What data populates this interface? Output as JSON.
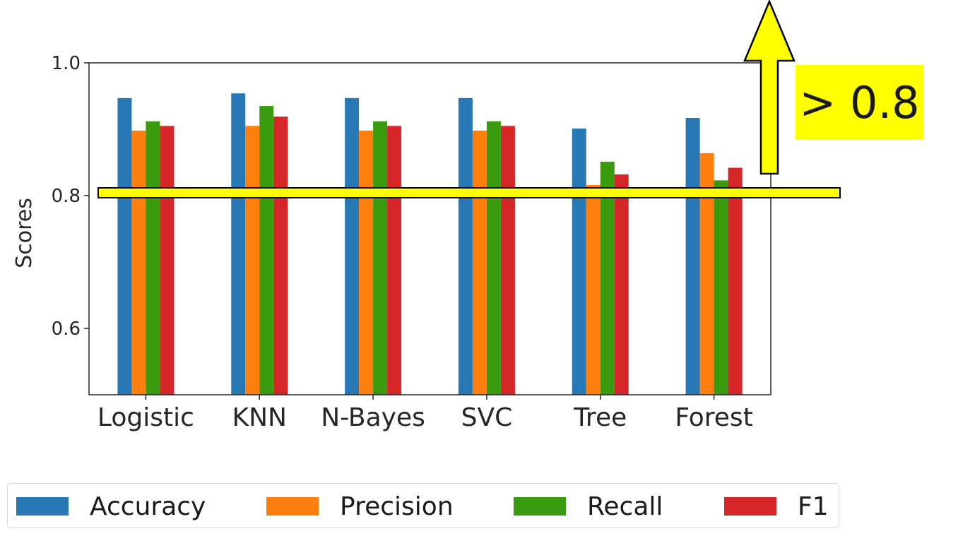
{
  "chart_data": {
    "type": "bar",
    "categories": [
      "Logistic",
      "KNN",
      "N-Bayes",
      "SVC",
      "Tree",
      "Forest"
    ],
    "series": [
      {
        "name": "Accuracy",
        "color": "#2878b5",
        "values": [
          0.947,
          0.954,
          0.947,
          0.947,
          0.901,
          0.917
        ]
      },
      {
        "name": "Precision",
        "color": "#ff7f0e",
        "values": [
          0.898,
          0.905,
          0.898,
          0.898,
          0.816,
          0.864
        ]
      },
      {
        "name": "Recall",
        "color": "#3a9b0e",
        "values": [
          0.912,
          0.935,
          0.912,
          0.912,
          0.851,
          0.823
        ]
      },
      {
        "name": "F1",
        "color": "#d62728",
        "values": [
          0.905,
          0.919,
          0.905,
          0.905,
          0.832,
          0.842
        ]
      }
    ],
    "ylabel": "Scores",
    "ylim": [
      0.5,
      1.0
    ],
    "yticks": [
      0.6,
      0.8,
      1.0
    ],
    "ytick_labels": [
      "0.6",
      "0.8",
      "1.0"
    ],
    "grid": false,
    "legend_placement": "bottom",
    "annotation": {
      "text": "> 0.8",
      "threshold": 0.8,
      "highlight_color": "#ffff00"
    }
  }
}
